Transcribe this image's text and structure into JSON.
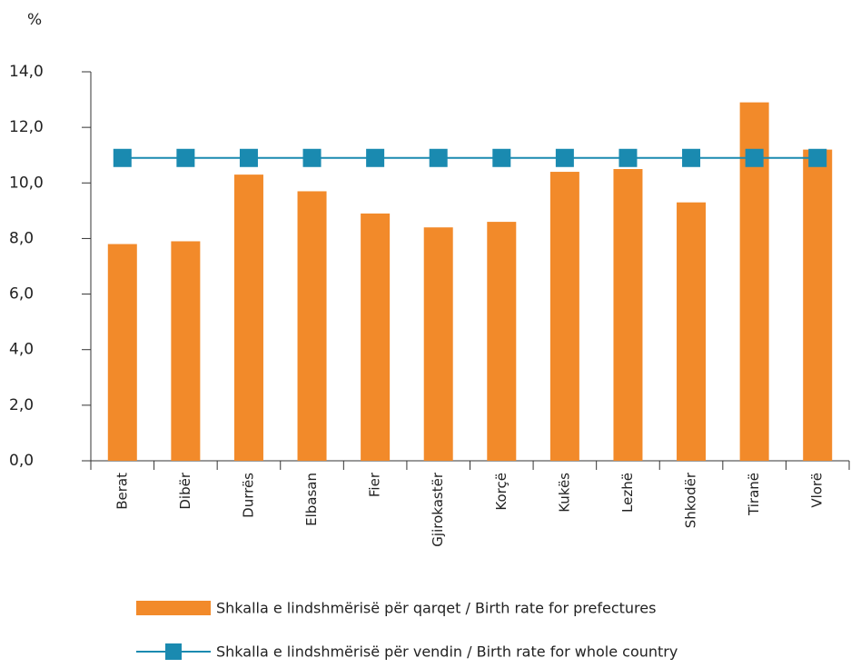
{
  "chart_data": {
    "type": "bar",
    "y_axis_label": "%",
    "categories": [
      "Berat",
      "Dibër",
      "Durrës",
      "Elbasan",
      "Fier",
      "Gjirokastër",
      "Korçë",
      "Kukës",
      "Lezhë",
      "Shkodër",
      "Tiranë",
      "Vlorë"
    ],
    "series": [
      {
        "name": "Shkalla e lindshmërisë për qarqet  / Birth rate for prefectures",
        "type": "bar",
        "color": "#f28a2a",
        "values": [
          7.8,
          7.9,
          10.3,
          9.7,
          8.9,
          8.4,
          8.6,
          10.4,
          10.5,
          9.3,
          12.9,
          11.2
        ]
      },
      {
        "name": "Shkalla e lindshmërisë për vendin  / Birth rate for whole country",
        "type": "line",
        "color": "#1a8ab0",
        "values": [
          10.9,
          10.9,
          10.9,
          10.9,
          10.9,
          10.9,
          10.9,
          10.9,
          10.9,
          10.9,
          10.9,
          10.9
        ]
      }
    ],
    "ylim": [
      0,
      14
    ],
    "yticks": [
      {
        "value": 0,
        "label": "0,0"
      },
      {
        "value": 2,
        "label": "2,0"
      },
      {
        "value": 4,
        "label": "4,0"
      },
      {
        "value": 6,
        "label": "6,0"
      },
      {
        "value": 8,
        "label": "8,0"
      },
      {
        "value": 10,
        "label": "10,0"
      },
      {
        "value": 12,
        "label": "12,0"
      },
      {
        "value": 14,
        "label": "14,0"
      }
    ],
    "legend": "bottom"
  }
}
